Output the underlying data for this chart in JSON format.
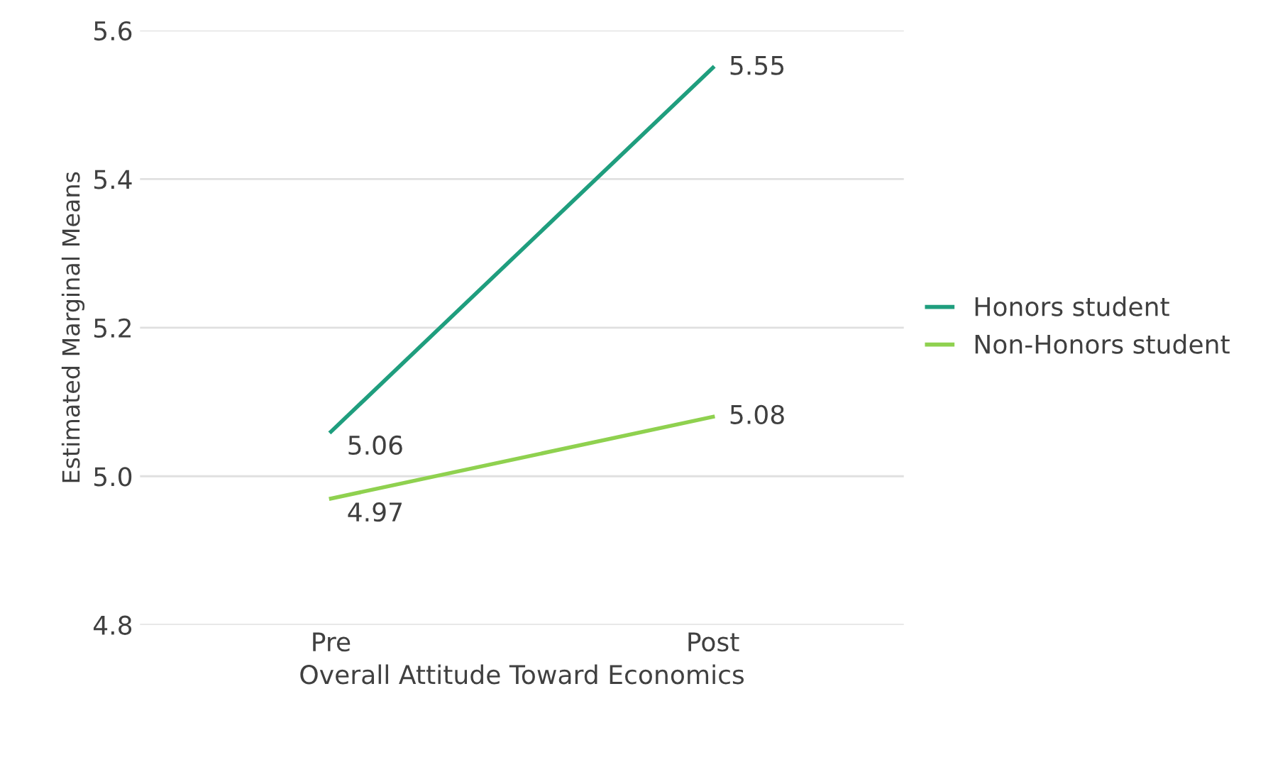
{
  "chart_data": {
    "type": "line",
    "xlabel": "Overall Attitude Toward Economics",
    "ylabel": "Estimated Marginal Means",
    "categories": [
      "Pre",
      "Post"
    ],
    "series": [
      {
        "name": "Honors student",
        "color": "#1f9e7e",
        "values": [
          5.06,
          5.55
        ]
      },
      {
        "name": "Non-Honors student",
        "color": "#8fd14f",
        "values": [
          4.97,
          5.08
        ]
      }
    ],
    "ylim": [
      4.8,
      5.6
    ],
    "yticks": [
      4.8,
      {
        "value": 5,
        "label": "5.0"
      },
      5.2,
      5.4,
      5.6
    ],
    "grid": "y",
    "legend": "right",
    "data_labels": true,
    "marker": "none",
    "line_style": "solid"
  }
}
